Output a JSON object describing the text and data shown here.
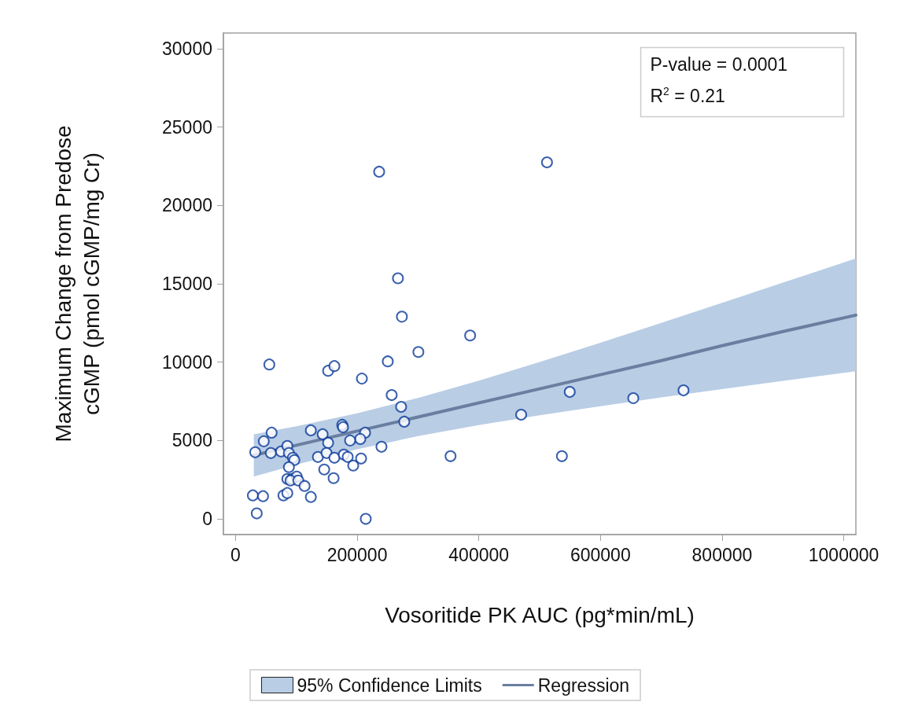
{
  "chart_data": {
    "type": "scatter",
    "xlabel": "Vosoritide PK AUC (pg*min/mL)",
    "ylabel": "Maximum Change from Predose cGMP (pmol cGMP/mg Cr)",
    "xlim": [
      -20000,
      1020000
    ],
    "xticks": [
      0,
      200000,
      400000,
      600000,
      800000,
      1000000
    ],
    "ylim": [
      -1000,
      31000
    ],
    "yticks": [
      0,
      5000,
      10000,
      15000,
      20000,
      25000,
      30000
    ],
    "grid": false,
    "legend": "bottom",
    "annotations": [
      "P-value = 0.0001",
      "R$^{2}$ = 0.21"
    ],
    "series": [
      {
        "name": "95% Confidence Limits",
        "type": "area",
        "color": "#b9cde5"
      },
      {
        "color": "#0a3a9a",
        "marker": "circle",
        "x": [
          236100,
          512100,
          267000,
          273500,
          385700,
          300600,
          55500,
          152200,
          162500,
          207700,
          250300,
          256700,
          272200,
          277400,
          175400,
          176700,
          123800,
          143200,
          212900,
          205100,
          188300,
          152200,
          239900,
          59300,
          46400,
          32300,
          58000,
          74800,
          85100,
          87700,
          94200,
          96700,
          135400,
          149600,
          162500,
          178000,
          184400,
          206400,
          193500,
          145800,
          161200,
          87700,
          85100,
          92900,
          100600,
          90300,
          103200,
          113500,
          78700,
          85100,
          28400,
          45200,
          123800,
          34800,
          214100,
          469600,
          549500,
          654000,
          736600,
          353500,
          536600
        ],
        "values": [
          22150,
          22750,
          15350,
          12900,
          11700,
          10650,
          9850,
          9450,
          9750,
          8950,
          10050,
          7900,
          7150,
          6200,
          6000,
          5850,
          5650,
          5400,
          5500,
          5100,
          5000,
          4850,
          4600,
          5500,
          4950,
          4250,
          4200,
          4300,
          4650,
          4200,
          3900,
          3750,
          3950,
          4200,
          3900,
          4100,
          3950,
          3850,
          3400,
          3150,
          2600,
          3300,
          2550,
          2550,
          2700,
          2450,
          2450,
          2100,
          1500,
          1650,
          1500,
          1450,
          1400,
          350,
          0,
          6650,
          8100,
          7700,
          8200,
          4000,
          4000
        ]
      },
      {
        "name": "Regression",
        "type": "line",
        "color": "#6a7fa0",
        "marker": "none",
        "line_style": "solid",
        "x": [
          30000,
          100000,
          200000,
          300000,
          400000,
          500000,
          600000,
          700000,
          800000,
          900000,
          1020000
        ],
        "values": [
          4050,
          4700,
          5600,
          6500,
          7400,
          8300,
          9200,
          10100,
          11050,
          11950,
          13000
        ],
        "lower": [
          2700,
          3460,
          4440,
          5280,
          5990,
          6610,
          7190,
          7750,
          8280,
          8800,
          9420
        ],
        "upper": [
          5400,
          5910,
          6740,
          7720,
          8820,
          10010,
          11240,
          12500,
          13780,
          15070,
          16620
        ]
      }
    ]
  }
}
